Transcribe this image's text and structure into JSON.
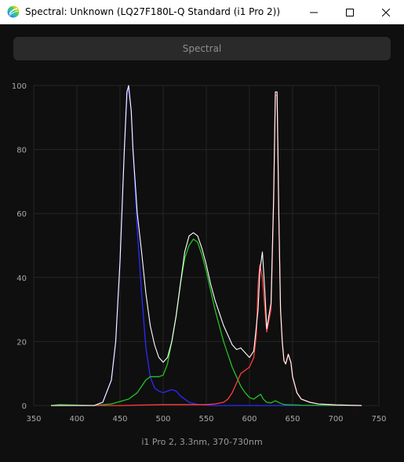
{
  "window": {
    "title": "Spectral: Unknown (LQ27F180L-Q Standard (i1 Pro 2))",
    "icon": "spectral-app-icon",
    "controls": [
      "minimize-icon",
      "maximize-icon",
      "close-icon"
    ]
  },
  "tabs": [
    {
      "label": "Spectral"
    }
  ],
  "footer": {
    "caption": "i1 Pro 2, 3.3nm, 370-730nm"
  },
  "colors": {
    "background": "#0f0f0f",
    "grid": "#262626",
    "total": "#ffffff",
    "red": "#ff3b3b",
    "green": "#22c322",
    "blue": "#2a2aff"
  },
  "chart_data": {
    "type": "line",
    "title": "",
    "xlabel": "",
    "ylabel": "",
    "xlim": [
      350,
      750
    ],
    "ylim": [
      0,
      100
    ],
    "xticks": [
      350,
      400,
      450,
      500,
      550,
      600,
      650,
      700,
      750
    ],
    "yticks": [
      0,
      20,
      40,
      60,
      80,
      100
    ],
    "grid": true,
    "series": [
      {
        "color": "white",
        "x": [
          370,
          420,
          430,
          440,
          445,
          450,
          455,
          458,
          460,
          463,
          465,
          470,
          475,
          480,
          485,
          490,
          495,
          500,
          505,
          510,
          515,
          520,
          525,
          530,
          535,
          540,
          545,
          550,
          555,
          560,
          565,
          570,
          575,
          580,
          585,
          590,
          595,
          600,
          605,
          610,
          612,
          615,
          618,
          620,
          625,
          628,
          630,
          632,
          634,
          636,
          638,
          640,
          642,
          645,
          648,
          650,
          655,
          660,
          670,
          680,
          700,
          730
        ],
        "y": [
          0,
          0,
          1,
          8,
          20,
          45,
          80,
          98,
          100,
          92,
          80,
          60,
          48,
          35,
          25,
          19,
          15,
          13.5,
          15,
          20,
          28,
          38,
          48,
          53,
          54,
          53,
          49,
          44,
          38,
          33,
          29,
          25,
          22,
          19,
          17.5,
          18,
          16.5,
          15,
          17,
          30,
          42,
          48,
          35,
          24,
          32,
          65,
          98,
          98,
          60,
          30,
          20,
          14,
          13,
          16,
          13.5,
          9,
          4,
          2,
          1,
          0.5,
          0.2,
          0
        ]
      },
      {
        "color": "red",
        "x": [
          370,
          450,
          500,
          550,
          560,
          570,
          575,
          580,
          585,
          590,
          595,
          600,
          605,
          608,
          610,
          612,
          615,
          618,
          620,
          625,
          628,
          630,
          632,
          634,
          636,
          638,
          640,
          642,
          645,
          648,
          650,
          655,
          660,
          670,
          680,
          700,
          730
        ],
        "y": [
          0,
          0,
          0.3,
          0.3,
          0.5,
          1,
          2,
          4,
          7,
          10,
          11,
          12,
          15,
          22,
          38,
          44,
          40,
          30,
          23,
          30,
          63,
          97,
          97,
          60,
          30,
          20,
          14,
          13,
          16,
          13.5,
          9,
          4,
          2,
          1,
          0.5,
          0.2,
          0
        ]
      },
      {
        "color": "green",
        "x": [
          370,
          380,
          420,
          440,
          460,
          470,
          475,
          480,
          485,
          490,
          495,
          500,
          505,
          510,
          515,
          520,
          525,
          530,
          535,
          540,
          545,
          550,
          555,
          560,
          565,
          570,
          575,
          580,
          585,
          590,
          595,
          600,
          605,
          610,
          613,
          616,
          620,
          625,
          630,
          635,
          640,
          660,
          730
        ],
        "y": [
          0,
          0.3,
          0,
          0.5,
          2,
          4,
          6,
          8,
          9,
          9,
          9,
          9.5,
          13,
          20,
          28,
          38,
          46,
          50,
          52,
          51,
          47,
          42,
          36,
          30,
          25,
          20,
          16,
          12,
          9,
          6,
          4,
          2.5,
          2,
          3,
          3.5,
          2,
          1,
          0.8,
          1.5,
          0.8,
          0.3,
          0.1,
          0
        ]
      },
      {
        "color": "blue",
        "x": [
          370,
          420,
          430,
          440,
          445,
          450,
          455,
          458,
          460,
          463,
          465,
          470,
          475,
          480,
          485,
          490,
          495,
          500,
          505,
          510,
          515,
          520,
          525,
          530,
          540,
          560,
          730
        ],
        "y": [
          0,
          0,
          1,
          8,
          20,
          45,
          80,
          97,
          99,
          92,
          80,
          55,
          35,
          18,
          9,
          5.5,
          4.5,
          4,
          4.5,
          5,
          4.5,
          3,
          2,
          1,
          0.3,
          0,
          0
        ]
      }
    ]
  }
}
